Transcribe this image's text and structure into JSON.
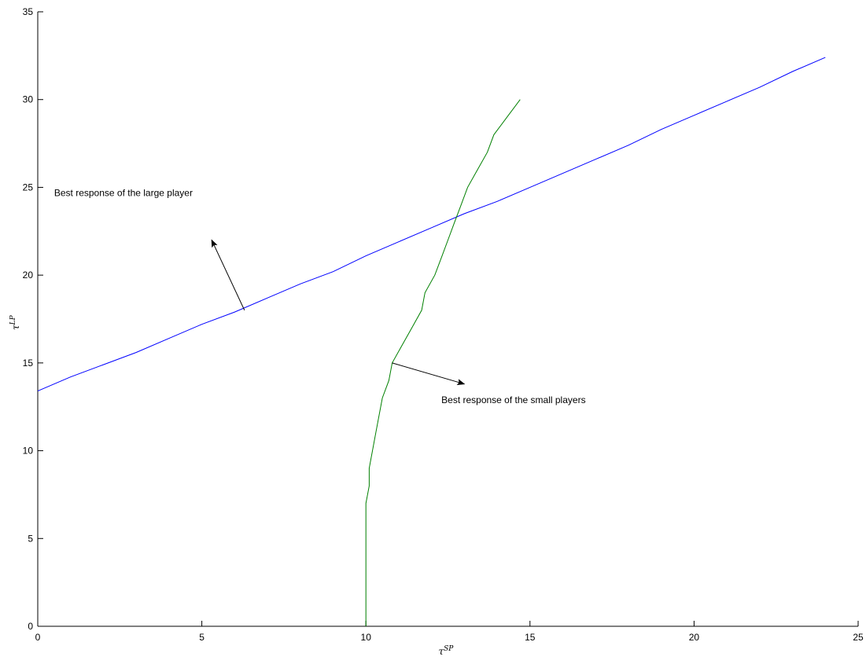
{
  "chart_data": {
    "type": "line",
    "title": "",
    "xlabel": {
      "base": "τ",
      "sup": "SP"
    },
    "ylabel": {
      "base": "τ",
      "sup": "LP"
    },
    "xlim": [
      0,
      25
    ],
    "ylim": [
      0,
      35
    ],
    "xticks": [
      0,
      5,
      10,
      15,
      20,
      25
    ],
    "yticks": [
      0,
      5,
      10,
      15,
      20,
      25,
      30,
      35
    ],
    "grid": false,
    "series": [
      {
        "id": "large",
        "color": "#0000ff",
        "points": [
          [
            0,
            13.4
          ],
          [
            1,
            14.2
          ],
          [
            2,
            14.9
          ],
          [
            3,
            15.6
          ],
          [
            4,
            16.4
          ],
          [
            5,
            17.2
          ],
          [
            6,
            17.9
          ],
          [
            7,
            18.7
          ],
          [
            8,
            19.5
          ],
          [
            9,
            20.2
          ],
          [
            10,
            21.1
          ],
          [
            11,
            21.9
          ],
          [
            12,
            22.7
          ],
          [
            13,
            23.5
          ],
          [
            14,
            24.2
          ],
          [
            15,
            25.0
          ],
          [
            16,
            25.8
          ],
          [
            17,
            26.6
          ],
          [
            18,
            27.4
          ],
          [
            19,
            28.3
          ],
          [
            20,
            29.1
          ],
          [
            21,
            29.9
          ],
          [
            22,
            30.7
          ],
          [
            23,
            31.6
          ],
          [
            24,
            32.4
          ]
        ]
      },
      {
        "id": "small",
        "color": "#008000",
        "points": [
          [
            10,
            0
          ],
          [
            10,
            7
          ],
          [
            10.1,
            8
          ],
          [
            10.1,
            9
          ],
          [
            10.3,
            11
          ],
          [
            10.5,
            13
          ],
          [
            10.7,
            14
          ],
          [
            10.8,
            15
          ],
          [
            11.1,
            16
          ],
          [
            11.4,
            17
          ],
          [
            11.7,
            18
          ],
          [
            11.8,
            19
          ],
          [
            12.1,
            20
          ],
          [
            12.3,
            21
          ],
          [
            12.5,
            22
          ],
          [
            12.7,
            23
          ],
          [
            12.9,
            24
          ],
          [
            13.1,
            25
          ],
          [
            13.4,
            26
          ],
          [
            13.7,
            27
          ],
          [
            13.9,
            28
          ],
          [
            14.3,
            29
          ],
          [
            14.7,
            30
          ]
        ]
      }
    ],
    "annotations": [
      {
        "id": "large",
        "text": "Best response of the large player",
        "text_at": [
          0.5,
          24.5
        ],
        "arrow_from": [
          6.3,
          18.0
        ],
        "arrow_to": [
          5.3,
          22.0
        ]
      },
      {
        "id": "small",
        "text": "Best response of the small players",
        "text_at": [
          12.3,
          12.7
        ],
        "arrow_from": [
          10.8,
          15.0
        ],
        "arrow_to": [
          13.0,
          13.8
        ]
      }
    ]
  }
}
